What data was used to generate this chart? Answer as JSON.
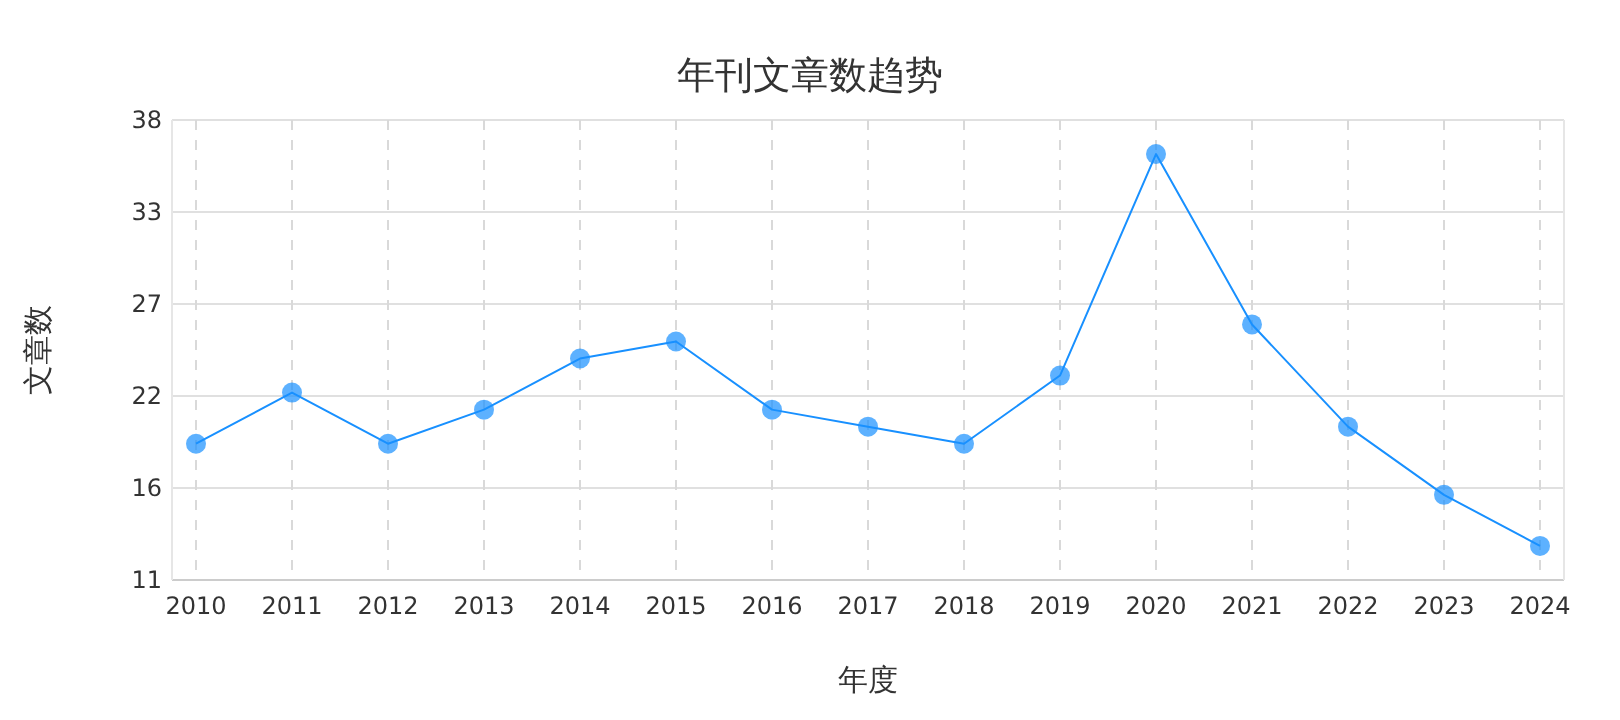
{
  "chart_data": {
    "type": "line",
    "title": "年刊文章数趋势",
    "xlabel": "年度",
    "ylabel": "文章数",
    "categories": [
      "2010",
      "2011",
      "2012",
      "2013",
      "2014",
      "2015",
      "2016",
      "2017",
      "2018",
      "2019",
      "2020",
      "2021",
      "2022",
      "2023",
      "2024"
    ],
    "series": [
      {
        "color": "#1890ff",
        "values": [
          19,
          22,
          19,
          21,
          24,
          25,
          21,
          20,
          19,
          23,
          36,
          26,
          20,
          16,
          13
        ]
      }
    ],
    "ylim": [
      11,
      38
    ],
    "yticks": [
      11,
      {
        "value": 16.4,
        "label": "16"
      },
      {
        "value": 21.8,
        "label": "22"
      },
      {
        "value": 27.2,
        "label": "27"
      },
      {
        "value": 32.6,
        "label": "33"
      },
      38
    ],
    "grid": true,
    "marker": "circle",
    "line_style": "solid"
  }
}
